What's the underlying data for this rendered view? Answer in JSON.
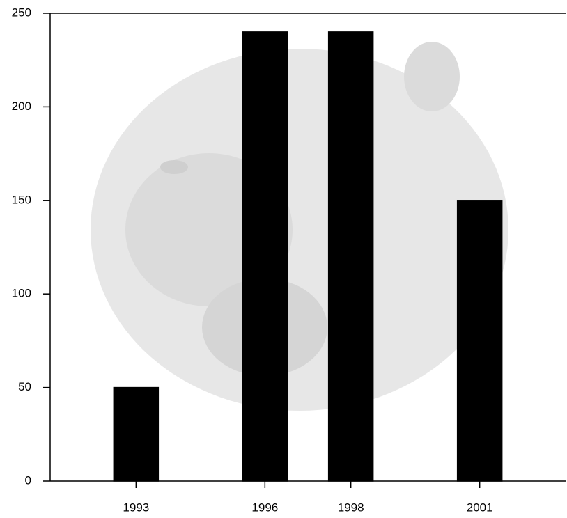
{
  "chart_data": {
    "type": "bar",
    "x": [
      1993,
      1996,
      1998,
      2001
    ],
    "values": [
      50,
      240,
      240,
      150
    ],
    "color": "#000000",
    "xlim": [
      1991,
      2003
    ],
    "xticks": [
      1993,
      1996,
      1998,
      2001
    ],
    "ylim": [
      0,
      250
    ],
    "yticks": [
      0,
      50,
      100,
      150,
      200,
      250
    ]
  }
}
